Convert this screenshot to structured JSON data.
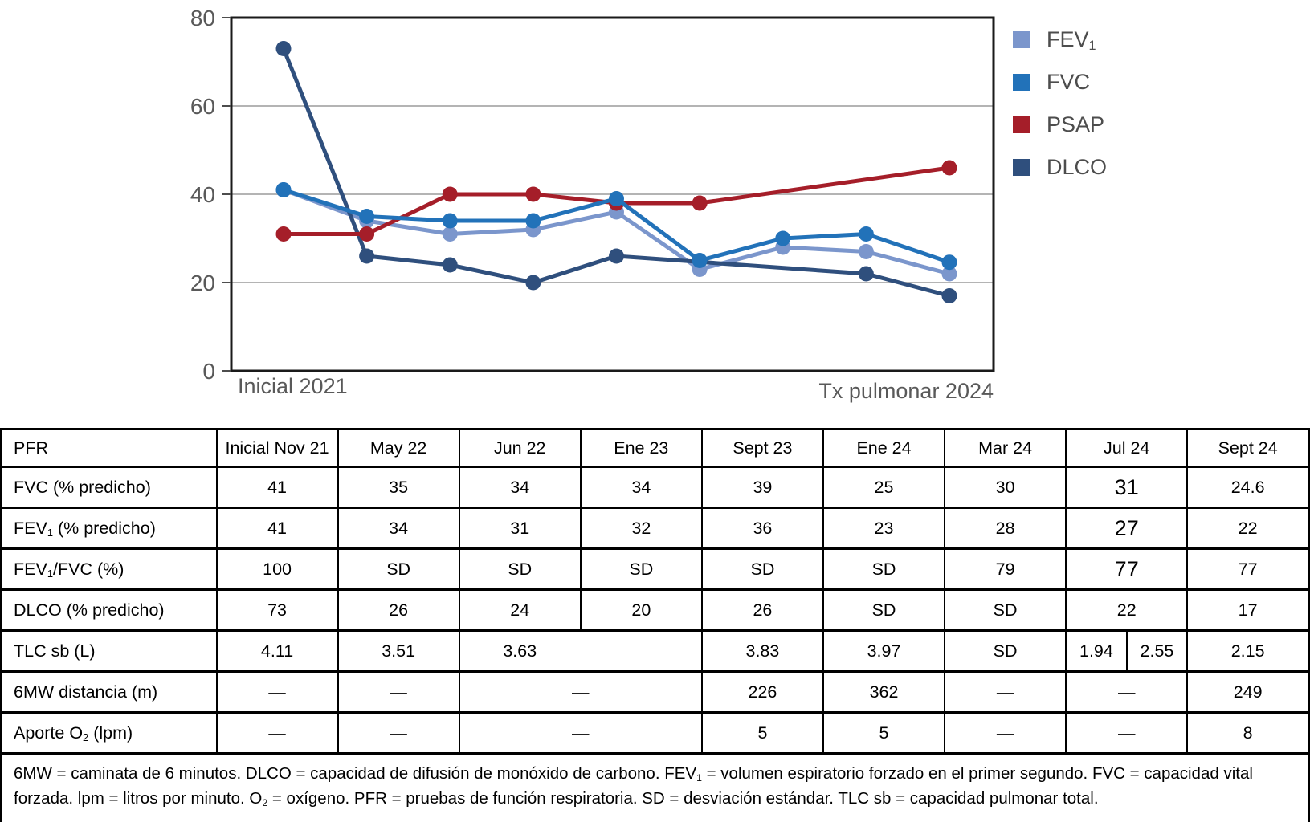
{
  "chart_data": {
    "type": "line",
    "title": "",
    "xlabel": "",
    "ylabel": "",
    "ylim": [
      0,
      80
    ],
    "y_ticks": [
      0,
      20,
      40,
      60,
      80
    ],
    "grid": "horizontal",
    "legend_position": "right",
    "x_start_label": "Inicial 2021",
    "x_end_label": "Tx pulmonar 2024",
    "categories": [
      "Inicial Nov 21",
      "May 22",
      "Jun 22",
      "Ene 23",
      "Sept 23",
      "Ene 24",
      "Mar 24",
      "Jul 24",
      "Sept 24"
    ],
    "series": [
      {
        "name": "FEV1",
        "label": "FEV_{1}",
        "color": "#7b96cc",
        "values": [
          41,
          34,
          31,
          32,
          36,
          23,
          28,
          27,
          22
        ]
      },
      {
        "name": "FVC",
        "label": "FVC",
        "color": "#2272b9",
        "values": [
          41,
          35,
          34,
          34,
          39,
          25,
          30,
          31,
          24.6
        ]
      },
      {
        "name": "PSAP",
        "label": "PSAP",
        "color": "#a51e29",
        "values": [
          31,
          31,
          40,
          40,
          38,
          38,
          null,
          null,
          46
        ]
      },
      {
        "name": "DLCO",
        "label": "DLCO",
        "color": "#2f4f7d",
        "values": [
          73,
          26,
          24,
          20,
          26,
          null,
          null,
          22,
          17
        ]
      }
    ],
    "colors": {
      "axis": "#1a1a1a",
      "grid": "#a9a9a9",
      "tick_label": "#595959"
    }
  },
  "table": {
    "header": [
      "PFR",
      "Inicial Nov 21",
      "May 22",
      "Jun 22",
      "Ene 23",
      "Sept 23",
      "Ene 24",
      "Mar 24",
      "Jul 24",
      "Sept 24"
    ],
    "rows": [
      {
        "label": "FVC (% predicho)",
        "cells": [
          {
            "t": "41"
          },
          {
            "t": "35"
          },
          {
            "t": "34"
          },
          {
            "t": "34"
          },
          {
            "t": "39"
          },
          {
            "t": "25"
          },
          {
            "t": "30"
          },
          {
            "t": "31",
            "big": true
          },
          {
            "t": "24.6"
          }
        ]
      },
      {
        "label": "FEV_{1} (% predicho)",
        "cells": [
          {
            "t": "41"
          },
          {
            "t": "34"
          },
          {
            "t": "31"
          },
          {
            "t": "32"
          },
          {
            "t": "36"
          },
          {
            "t": "23"
          },
          {
            "t": "28"
          },
          {
            "t": "27",
            "big": true
          },
          {
            "t": "22"
          }
        ]
      },
      {
        "label": "FEV_{1}/FVC (%)",
        "cells": [
          {
            "t": "100"
          },
          {
            "t": "SD"
          },
          {
            "t": "SD"
          },
          {
            "t": "SD"
          },
          {
            "t": "SD"
          },
          {
            "t": "SD"
          },
          {
            "t": "79"
          },
          {
            "t": "77",
            "big": true
          },
          {
            "t": "77"
          }
        ]
      },
      {
        "label": "DLCO (% predicho)",
        "cells": [
          {
            "t": "73"
          },
          {
            "t": "26"
          },
          {
            "t": "24"
          },
          {
            "t": "20"
          },
          {
            "t": "26"
          },
          {
            "t": "SD"
          },
          {
            "t": "SD"
          },
          {
            "t": "22"
          },
          {
            "t": "17"
          }
        ]
      },
      {
        "label": "TLC sb (L)",
        "cells": [
          {
            "t": "4.11"
          },
          {
            "t": "3.51"
          },
          {
            "t": "3.63",
            "span": 2,
            "align": "half-left"
          },
          {
            "t": "3.83"
          },
          {
            "t": "3.97"
          },
          {
            "t": "SD"
          },
          {
            "t": "1.94",
            "half": true
          },
          {
            "t": "2.55",
            "half": true
          },
          {
            "t": "2.15"
          }
        ]
      },
      {
        "label": "6MW distancia (m)",
        "cells": [
          {
            "t": "—"
          },
          {
            "t": "—"
          },
          {
            "t": "—",
            "span": 2
          },
          {
            "t": "226"
          },
          {
            "t": "362"
          },
          {
            "t": "—"
          },
          {
            "t": "—"
          },
          {
            "t": "249"
          }
        ]
      },
      {
        "label": "Aporte O_{2} (lpm)",
        "cells": [
          {
            "t": "—"
          },
          {
            "t": "—"
          },
          {
            "t": "—",
            "span": 2
          },
          {
            "t": "5"
          },
          {
            "t": "5"
          },
          {
            "t": "—"
          },
          {
            "t": "—"
          },
          {
            "t": "8"
          }
        ]
      }
    ],
    "footnote": "6MW = caminata de 6 minutos. DLCO = capacidad de difusión de monóxido de carbono. FEV_{1} = volumen espiratorio forzado en el primer segundo. FVC = capacidad vital forzada. lpm = litros por minuto. O_{2} = oxígeno. PFR = pruebas de función respiratoria. SD = desviación estándar. TLC sb = capacidad pulmonar total."
  }
}
